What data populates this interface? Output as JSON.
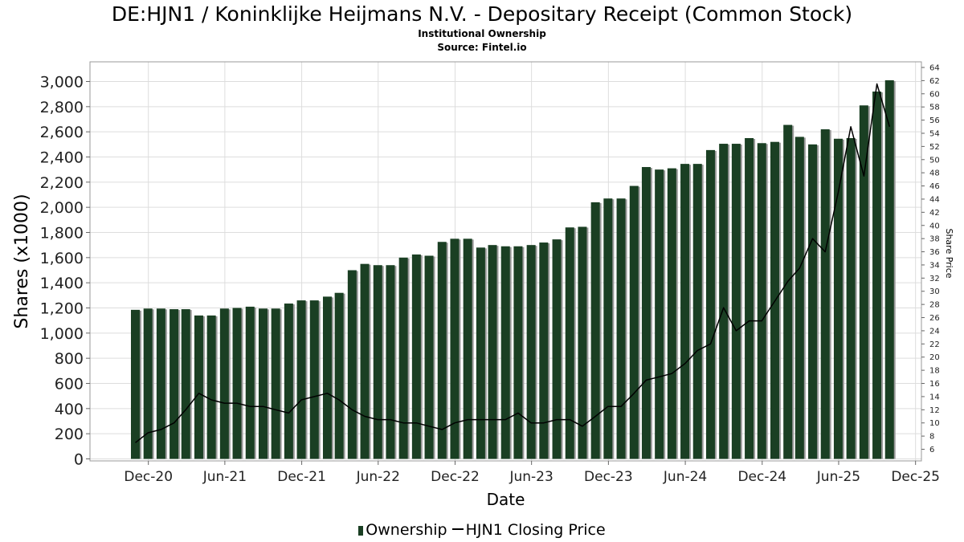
{
  "title": "DE:HJN1 / Koninklijke Heijmans N.V. - Depositary Receipt (Common Stock)",
  "subtitle": "Institutional Ownership",
  "source": "Source: Fintel.io",
  "legend": {
    "ownership": "Ownership",
    "price": "HJN1 Closing Price"
  },
  "colors": {
    "bar": "#1a3f23",
    "bar_shadow": "#9a9a9a",
    "price_line": "#000000",
    "grid": "#dddddd"
  },
  "chart_data": {
    "type": "bar",
    "title": "DE:HJN1 / Koninklijke Heijmans N.V. - Depositary Receipt (Common Stock)",
    "xlabel": "Date",
    "ylabel": "Shares (x1000)",
    "y2label": "Share Price",
    "ylim": [
      0,
      3100
    ],
    "y2lim": [
      4,
      64
    ],
    "xlim": [
      "2020-07-15",
      "2025-12-15"
    ],
    "x_ticks": [
      "Dec-20",
      "Jun-21",
      "Dec-21",
      "Jun-22",
      "Dec-22",
      "Jun-23",
      "Dec-23",
      "Jun-24",
      "Dec-24",
      "Jun-25",
      "Dec-25"
    ],
    "y_ticks": [
      "0",
      "200",
      "400",
      "600",
      "800",
      "1,000",
      "1,200",
      "1,400",
      "1,600",
      "1,800",
      "2,000",
      "2,200",
      "2,400",
      "2,600",
      "2,800",
      "3,000"
    ],
    "y2_ticks": [
      "6",
      "8",
      "10",
      "12",
      "14",
      "16",
      "18",
      "20",
      "22",
      "24",
      "26",
      "28",
      "30",
      "32",
      "34",
      "36",
      "38",
      "40",
      "42",
      "44",
      "46",
      "48",
      "50",
      "52",
      "54",
      "56",
      "58",
      "60",
      "62",
      "64"
    ],
    "grid": true,
    "legend_position": "bottom",
    "series": [
      {
        "name": "Ownership",
        "type": "bar",
        "x": [
          "2020-10-31",
          "2020-11-30",
          "2020-12-31",
          "2021-01-31",
          "2021-02-28",
          "2021-03-31",
          "2021-04-30",
          "2021-05-31",
          "2021-06-30",
          "2021-07-31",
          "2021-08-31",
          "2021-09-30",
          "2021-10-31",
          "2021-11-30",
          "2021-12-31",
          "2022-01-31",
          "2022-02-28",
          "2022-03-31",
          "2022-04-30",
          "2022-05-31",
          "2022-06-30",
          "2022-07-31",
          "2022-08-31",
          "2022-09-30",
          "2022-10-31",
          "2022-11-30",
          "2022-12-31",
          "2023-01-31",
          "2023-02-28",
          "2023-03-31",
          "2023-04-30",
          "2023-05-31",
          "2023-06-30",
          "2023-07-31",
          "2023-08-31",
          "2023-09-30",
          "2023-10-31",
          "2023-11-30",
          "2023-12-31",
          "2024-01-31",
          "2024-02-29",
          "2024-03-31",
          "2024-04-30",
          "2024-05-31",
          "2024-06-30",
          "2024-07-31",
          "2024-08-31",
          "2024-09-30",
          "2024-10-31",
          "2024-11-30",
          "2024-12-31",
          "2025-01-31",
          "2025-02-28",
          "2025-03-31",
          "2025-04-30",
          "2025-05-31",
          "2025-06-30",
          "2025-07-31",
          "2025-08-31",
          "2025-09-30"
        ],
        "values": [
          1185,
          1195,
          1195,
          1190,
          1190,
          1140,
          1140,
          1195,
          1200,
          1210,
          1195,
          1195,
          1235,
          1260,
          1260,
          1290,
          1320,
          1500,
          1550,
          1540,
          1540,
          1600,
          1625,
          1615,
          1725,
          1750,
          1750,
          1680,
          1700,
          1690,
          1690,
          1700,
          1720,
          1745,
          1840,
          1845,
          2040,
          2070,
          2070,
          2170,
          2320,
          2300,
          2310,
          2345,
          2345,
          2455,
          2505,
          2505,
          2550,
          2510,
          2520,
          2655,
          2560,
          2500,
          2620,
          2545,
          2550,
          2810,
          2920,
          3010
        ]
      },
      {
        "name": "HJN1 Closing Price",
        "type": "line",
        "x": [
          "2020-10-31",
          "2020-11-30",
          "2020-12-31",
          "2021-01-31",
          "2021-02-28",
          "2021-03-31",
          "2021-04-30",
          "2021-05-31",
          "2021-06-30",
          "2021-07-31",
          "2021-08-31",
          "2021-09-30",
          "2021-10-31",
          "2021-11-30",
          "2021-12-31",
          "2022-01-31",
          "2022-02-28",
          "2022-03-31",
          "2022-04-30",
          "2022-05-31",
          "2022-06-30",
          "2022-07-31",
          "2022-08-31",
          "2022-09-30",
          "2022-10-31",
          "2022-11-30",
          "2022-12-31",
          "2023-01-31",
          "2023-02-28",
          "2023-03-31",
          "2023-04-30",
          "2023-05-31",
          "2023-06-30",
          "2023-07-31",
          "2023-08-31",
          "2023-09-30",
          "2023-10-31",
          "2023-11-30",
          "2023-12-31",
          "2024-01-31",
          "2024-02-29",
          "2024-03-31",
          "2024-04-30",
          "2024-05-31",
          "2024-06-30",
          "2024-07-31",
          "2024-08-31",
          "2024-09-30",
          "2024-10-31",
          "2024-11-30",
          "2024-12-31",
          "2025-01-31",
          "2025-02-28",
          "2025-03-31",
          "2025-04-30",
          "2025-05-31",
          "2025-06-30",
          "2025-07-31",
          "2025-08-31",
          "2025-09-30"
        ],
        "values": [
          7,
          8.5,
          9,
          10,
          12,
          14.5,
          13.5,
          13,
          13,
          12.5,
          12.5,
          12,
          11.5,
          13.5,
          14,
          14.5,
          13.5,
          12,
          11,
          10.5,
          10.5,
          10,
          10,
          9.5,
          9,
          10,
          10.5,
          10.5,
          10.5,
          10.5,
          11.5,
          10,
          10,
          10.5,
          10.5,
          9.5,
          11,
          12.5,
          12.5,
          14.5,
          16.5,
          17,
          17.5,
          19,
          21,
          22,
          27.5,
          24,
          25.5,
          25.5,
          28.5,
          31.5,
          33.5,
          38,
          36,
          45,
          55,
          47.5,
          61.5,
          55
        ]
      }
    ]
  }
}
